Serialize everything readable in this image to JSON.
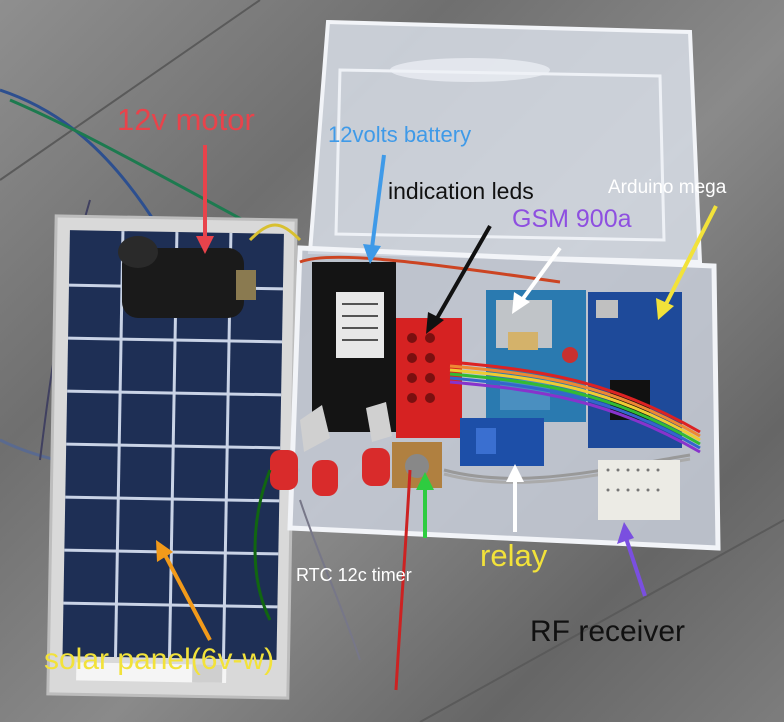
{
  "photo": {
    "labels": {
      "motor": "12v motor",
      "battery": "12volts battery",
      "leds": "indication leds",
      "gsm": "GSM 900a",
      "arduino": "Arduino mega",
      "relay": "relay",
      "rtc": "RTC 12c timer",
      "rf": "RF receiver",
      "solar": "solar panel(6v-w)"
    },
    "colors": {
      "motor": "#e8434b",
      "battery": "#3f9ae8",
      "leds": "#111111",
      "gsm": "#8e4fe0",
      "arduino": "#f2e23a",
      "relay": "#ffffff",
      "rtc": "#2ecc40",
      "rf": "#7a4fe0",
      "solar": "#f29a1a"
    }
  }
}
